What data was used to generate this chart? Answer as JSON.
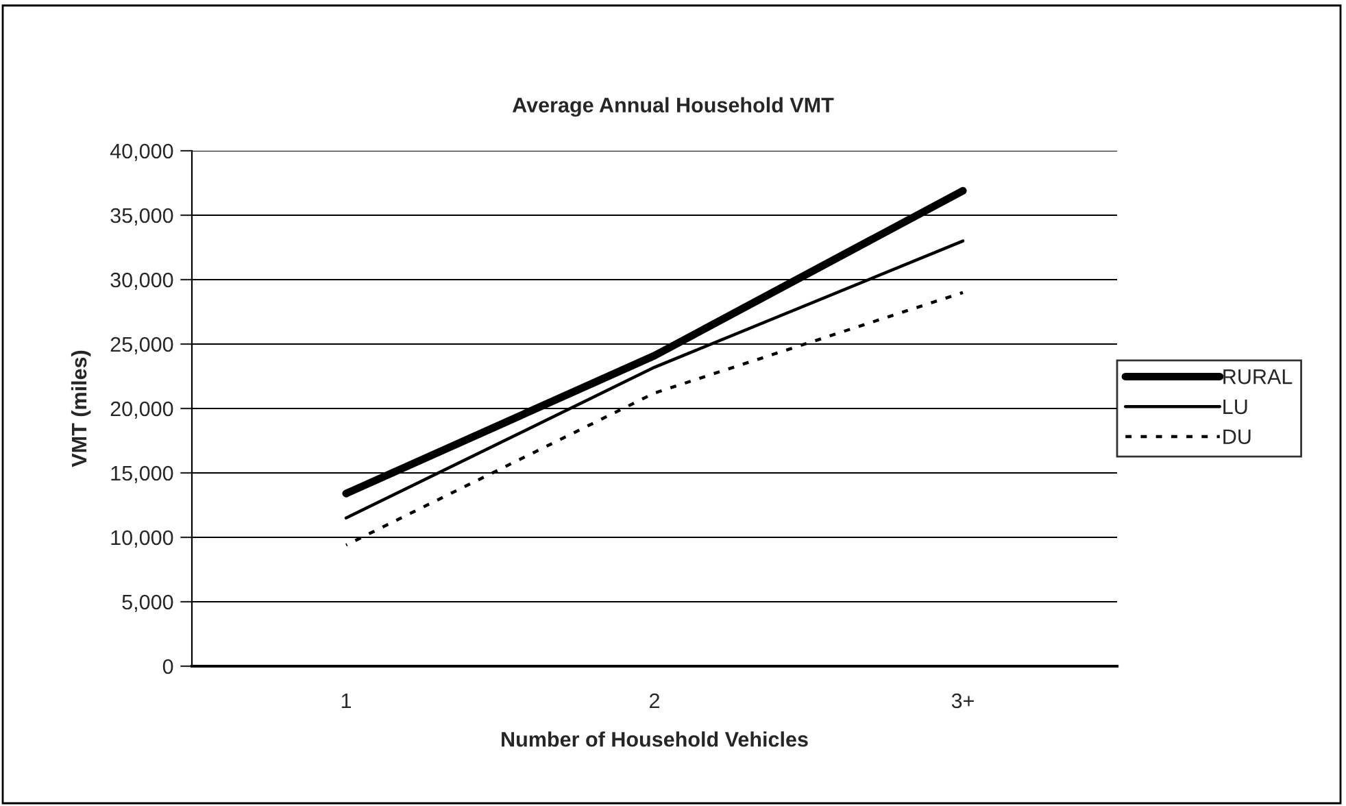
{
  "chart_data": {
    "type": "line",
    "title": "Average Annual Household VMT",
    "xlabel": "Number of Household Vehicles",
    "ylabel": "VMT (miles)",
    "categories": [
      "1",
      "2",
      "3+"
    ],
    "series": [
      {
        "name": "RURAL",
        "color": "#000000",
        "values": [
          13400,
          24100,
          36900
        ],
        "line_style": "solid"
      },
      {
        "name": "LU",
        "color": "#000000",
        "values": [
          11500,
          23200,
          33000
        ],
        "line_style": "solid"
      },
      {
        "name": "DU",
        "color": "#000000",
        "values": [
          9400,
          21200,
          29000
        ],
        "line_style": "dotted"
      }
    ],
    "ylim": [
      0,
      40000
    ],
    "yticks": [
      {
        "value": 0,
        "label": "0"
      },
      {
        "value": 5000,
        "label": "5,000"
      },
      {
        "value": 10000,
        "label": "10,000"
      },
      {
        "value": 15000,
        "label": "15,000"
      },
      {
        "value": 20000,
        "label": "20,000"
      },
      {
        "value": 25000,
        "label": "25,000"
      },
      {
        "value": 30000,
        "label": "30,000"
      },
      {
        "value": 35000,
        "label": "35,000"
      },
      {
        "value": 40000,
        "label": "40,000"
      }
    ],
    "grid": "y",
    "legend": "right",
    "marker": "none"
  }
}
